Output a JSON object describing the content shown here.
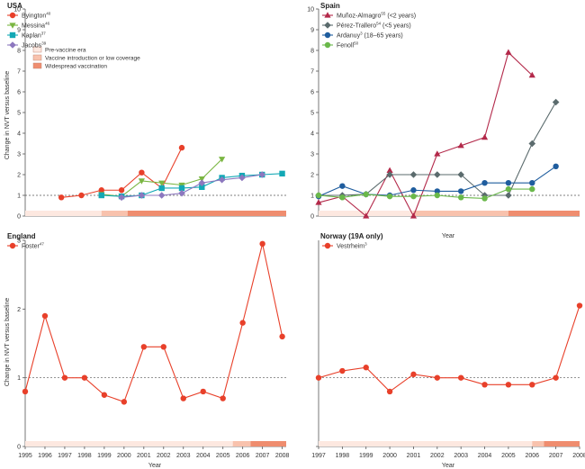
{
  "colors": {
    "red": "#e8402a",
    "green": "#7ab642",
    "teal": "#13a8b5",
    "purple": "#8d78bf",
    "crimson": "#b3294a",
    "slate": "#5b6b6d",
    "navy": "#1f5d9e",
    "lime": "#6ab84a",
    "pre": "#fde8e0",
    "intro": "#f8c2ad",
    "wide": "#ef8d6f"
  },
  "chart_data": [
    {
      "type": "line",
      "title": "USA",
      "ylabel": "Change in NVT versus baseline",
      "xlabel": "",
      "xlim": [
        1995,
        2008
      ],
      "ylim": [
        0,
        10
      ],
      "yticks": [
        0,
        1,
        2,
        3,
        4,
        5,
        6,
        7,
        8,
        9,
        10
      ],
      "xticks": [],
      "series": [
        {
          "name": "Byington",
          "ref": "40",
          "marker": "circle",
          "color": "#e8402a",
          "x": [
            1997,
            1998,
            1999,
            2000,
            2001,
            2002,
            2003
          ],
          "values": [
            0.9,
            1.0,
            1.25,
            1.25,
            2.1,
            1.35,
            3.3
          ]
        },
        {
          "name": "Messina",
          "ref": "46",
          "marker": "triangle-down",
          "color": "#7ab642",
          "x": [
            1999,
            2000,
            2001,
            2002,
            2003,
            2004,
            2005
          ],
          "values": [
            1.05,
            0.95,
            1.7,
            1.6,
            1.5,
            1.8,
            2.75
          ]
        },
        {
          "name": "Kaplan",
          "ref": "37",
          "marker": "square",
          "color": "#13a8b5",
          "x": [
            1999,
            2000,
            2001,
            2002,
            2003,
            2004,
            2005,
            2006,
            2007,
            2008
          ],
          "values": [
            1.0,
            0.95,
            1.0,
            1.35,
            1.35,
            1.4,
            1.85,
            1.95,
            2.0,
            2.05
          ]
        },
        {
          "name": "Jacobs",
          "ref": "39",
          "marker": "diamond",
          "color": "#8d78bf",
          "x": [
            2000,
            2001,
            2002,
            2003,
            2004,
            2005,
            2006,
            2007
          ],
          "values": [
            0.9,
            1.0,
            1.0,
            1.1,
            1.6,
            1.75,
            1.85,
            2.0
          ]
        }
      ],
      "eras": [
        {
          "name": "Pre-vaccine era",
          "from": 1995,
          "to": 1999
        },
        {
          "name": "Vaccine introduction or low coverage",
          "from": 1999,
          "to": 2000.3
        },
        {
          "name": "Widespread vaccination",
          "from": 2000.3,
          "to": 2008.2
        }
      ],
      "legend_position": "top-left"
    },
    {
      "type": "line",
      "title": "Spain",
      "ylabel": "",
      "xlabel": "Year",
      "xlim": [
        1997,
        2008
      ],
      "ylim": [
        0,
        10
      ],
      "yticks": [
        0,
        1,
        2,
        3,
        4,
        5,
        6,
        7,
        8,
        9,
        10
      ],
      "xticks": [],
      "series": [
        {
          "name": "Muñoz-Almagro",
          "ref": "55",
          "note": " (<2 years)",
          "marker": "triangle-up",
          "color": "#b3294a",
          "x": [
            1997,
            1998,
            1999,
            2000,
            2001,
            2002,
            2003,
            2004,
            2005,
            2006
          ],
          "values": [
            0.65,
            0.95,
            0.0,
            2.2,
            0.0,
            3.0,
            3.4,
            3.8,
            7.9,
            6.8
          ]
        },
        {
          "name": "Pérez-Trallero",
          "ref": "54",
          "note": " (<5 years)",
          "marker": "diamond",
          "color": "#5b6b6d",
          "x": [
            1997,
            1998,
            1999,
            2000,
            2001,
            2002,
            2003,
            2004,
            2005,
            2006,
            2007
          ],
          "values": [
            1.0,
            1.0,
            1.05,
            2.0,
            2.0,
            2.0,
            2.0,
            1.0,
            1.0,
            3.5,
            5.5
          ]
        },
        {
          "name": "Ardanuy",
          "ref": "3",
          "note": " (18–65 years)",
          "marker": "circle",
          "color": "#1f5d9e",
          "x": [
            1997,
            1998,
            1999,
            2000,
            2001,
            2002,
            2003,
            2004,
            2005,
            2006,
            2007
          ],
          "values": [
            0.95,
            1.45,
            1.05,
            1.0,
            1.25,
            1.2,
            1.2,
            1.6,
            1.6,
            1.6,
            2.4
          ]
        },
        {
          "name": "Fenoll",
          "ref": "50",
          "note": "",
          "marker": "circle",
          "color": "#6ab84a",
          "x": [
            1997,
            1998,
            1999,
            2000,
            2001,
            2002,
            2003,
            2004,
            2005,
            2006
          ],
          "values": [
            1.0,
            0.9,
            1.05,
            0.95,
            0.95,
            1.0,
            0.9,
            0.85,
            1.3,
            1.3
          ]
        }
      ],
      "eras": [
        {
          "name": "Pre-vaccine era",
          "from": 1997,
          "to": 2001
        },
        {
          "name": "Vaccine introduction or low coverage",
          "from": 2001,
          "to": 2005
        },
        {
          "name": "Widespread vaccination",
          "from": 2005,
          "to": 2008
        }
      ],
      "legend_position": "top-left"
    },
    {
      "type": "line",
      "title": "England",
      "ylabel": "Change in NVT versus baseline",
      "xlabel": "Year",
      "xlim": [
        1995,
        2008
      ],
      "ylim": [
        0,
        3
      ],
      "yticks": [
        0,
        1,
        2,
        3
      ],
      "xticks": [
        1995,
        1996,
        1997,
        1998,
        1999,
        2000,
        2001,
        2002,
        2003,
        2004,
        2005,
        2006,
        2007,
        2008
      ],
      "series": [
        {
          "name": "Foster",
          "ref": "47",
          "marker": "circle",
          "color": "#e8402a",
          "x": [
            1995,
            1996,
            1997,
            1998,
            1999,
            2000,
            2001,
            2002,
            2003,
            2004,
            2005,
            2006,
            2007,
            2008
          ],
          "values": [
            0.8,
            1.9,
            1.0,
            1.0,
            0.75,
            0.65,
            1.45,
            1.45,
            0.7,
            0.8,
            0.7,
            1.8,
            2.95,
            1.6
          ]
        }
      ],
      "eras": [
        {
          "name": "Pre-vaccine era",
          "from": 1995,
          "to": 2005.5
        },
        {
          "name": "Vaccine introduction or low coverage",
          "from": 2005.5,
          "to": 2006.4
        },
        {
          "name": "Widespread vaccination",
          "from": 2006.4,
          "to": 2008.2
        }
      ],
      "legend_position": "top-left"
    },
    {
      "type": "line",
      "title": "Norway (19A only)",
      "ylabel": "",
      "xlabel": "Year",
      "xlim": [
        1997,
        2008
      ],
      "ylim": [
        0,
        3
      ],
      "yticks": [],
      "xticks": [
        1997,
        1998,
        1999,
        2000,
        2001,
        2002,
        2003,
        2004,
        2005,
        2006,
        2007,
        2008
      ],
      "series": [
        {
          "name": "Vestrheim",
          "ref": "3",
          "marker": "circle",
          "color": "#e8402a",
          "x": [
            1997,
            1998,
            1999,
            2000,
            2001,
            2002,
            2003,
            2004,
            2005,
            2006,
            2007,
            2008
          ],
          "values": [
            1.0,
            1.1,
            1.15,
            0.8,
            1.05,
            1.0,
            1.0,
            0.9,
            0.9,
            0.9,
            1.0,
            2.05
          ]
        }
      ],
      "eras": [
        {
          "name": "Pre-vaccine era",
          "from": 1997,
          "to": 2006
        },
        {
          "name": "Vaccine introduction or low coverage",
          "from": 2006,
          "to": 2006.5
        },
        {
          "name": "Widespread vaccination",
          "from": 2006.5,
          "to": 2008.1
        }
      ],
      "legend_position": "top-left"
    }
  ],
  "legend_eras": {
    "pre": "Pre-vaccine era",
    "intro": "Vaccine introduction or low coverage",
    "wide": "Widespread vaccination"
  }
}
